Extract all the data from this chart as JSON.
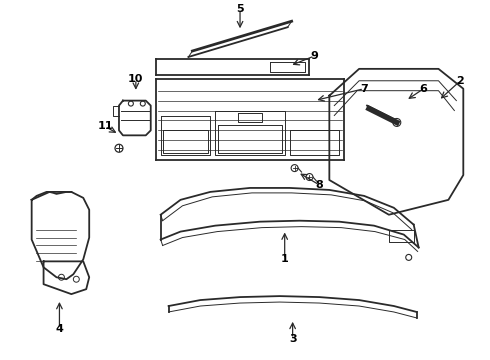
{
  "bg_color": "#ffffff",
  "line_color": "#2a2a2a",
  "label_color": "#000000",
  "lw_main": 1.3,
  "lw_thin": 0.7,
  "lw_thick": 2.0
}
